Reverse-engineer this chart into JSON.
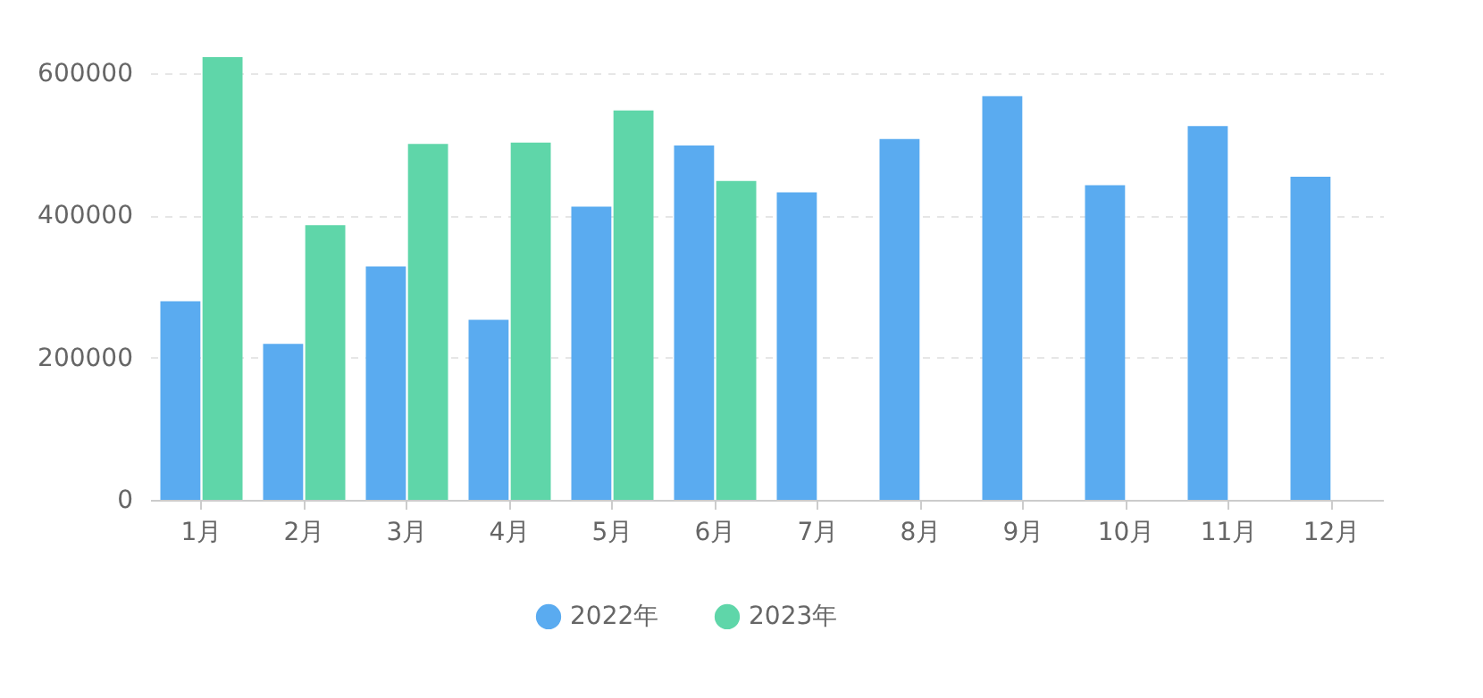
{
  "chart_data": {
    "type": "bar",
    "categories": [
      "1月",
      "2月",
      "3月",
      "4月",
      "5月",
      "6月",
      "7月",
      "8月",
      "9月",
      "10月",
      "11月",
      "12月"
    ],
    "series": [
      {
        "name": "2022年",
        "color": "#5aabf0",
        "values": [
          279000,
          219000,
          328000,
          253000,
          412000,
          498000,
          432000,
          507000,
          567000,
          442000,
          525000,
          454000
        ]
      },
      {
        "name": "2023年",
        "color": "#5fd6a9",
        "values": [
          622000,
          386000,
          500000,
          502000,
          547000,
          448000,
          null,
          null,
          null,
          null,
          null,
          null
        ]
      }
    ],
    "ylim": [
      0,
      622000
    ],
    "yticks": [
      0,
      200000,
      400000,
      600000
    ],
    "grid": "y",
    "legend": "bottom"
  }
}
